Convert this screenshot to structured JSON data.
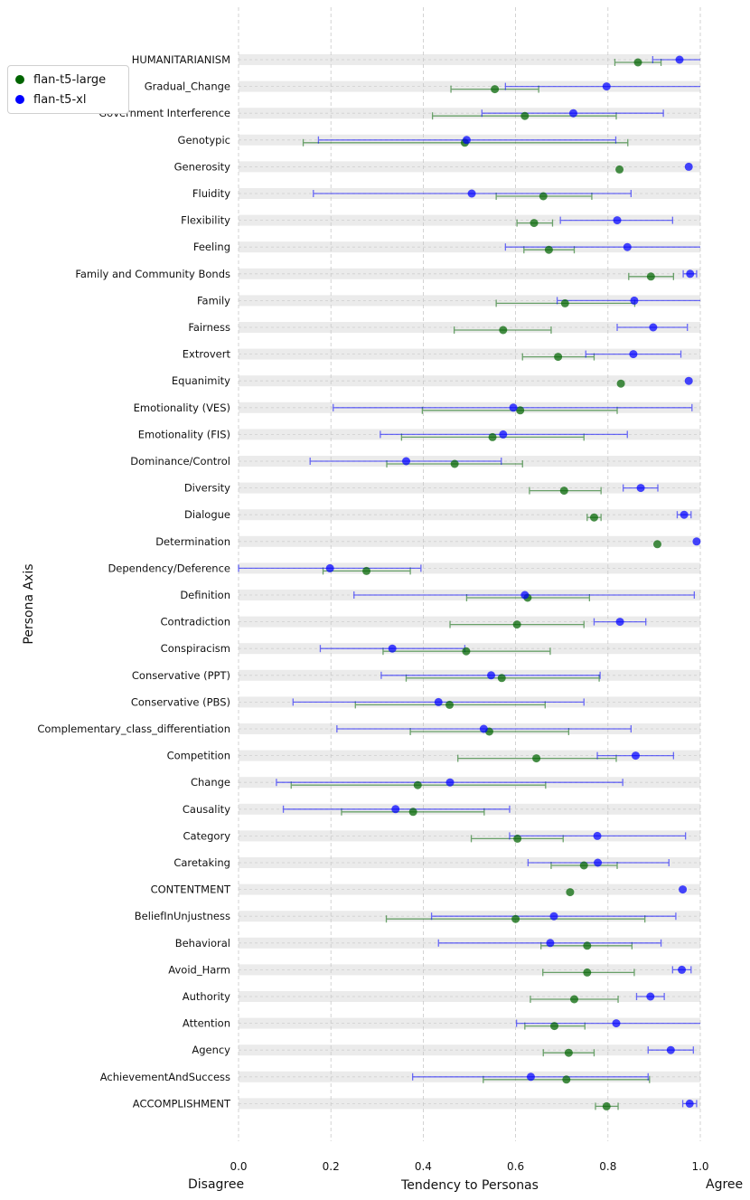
{
  "chart_data": {
    "type": "scatter",
    "orientation": "horizontal",
    "xlabel": "Tendency to Personas",
    "ylabel": "Persona Axis",
    "xlim": [
      0.0,
      1.0
    ],
    "xticks": [
      "0.0",
      "0.2",
      "0.4",
      "0.6",
      "0.8",
      "1.0"
    ],
    "xtick_values": [
      0.0,
      0.2,
      0.4,
      0.6,
      0.8,
      1.0
    ],
    "x_left_annotation": "Disagree",
    "x_right_annotation": "Agree",
    "legend_position": "top-left",
    "categories": [
      "HUMANITARIANISM",
      "Gradual_Change",
      "Government Interference",
      "Genotypic",
      "Generosity",
      "Fluidity",
      "Flexibility",
      "Feeling",
      "Family and Community Bonds",
      "Family",
      "Fairness",
      "Extrovert",
      "Equanimity",
      "Emotionality (VES)",
      "Emotionality (FIS)",
      "Dominance/Control",
      "Diversity",
      "Dialogue",
      "Determination",
      "Dependency/Deference",
      "Definition",
      "Contradiction",
      "Conspiracism",
      "Conservative (PPT)",
      "Conservative (PBS)",
      "Complementary_class_differentiation",
      "Competition",
      "Change",
      "Causality",
      "Category",
      "Caretaking",
      "CONTENTMENT",
      "BeliefInUnjustness",
      "Behavioral",
      "Avoid_Harm",
      "Authority",
      "Attention",
      "Agency",
      "AchievementAndSuccess",
      "ACCOMPLISHMENT"
    ],
    "series": [
      {
        "name": "flan-t5-large",
        "color": "#006400",
        "means": [
          0.865,
          0.555,
          0.62,
          0.49,
          0.825,
          0.66,
          0.64,
          0.672,
          0.893,
          0.707,
          0.573,
          0.692,
          0.828,
          0.61,
          0.55,
          0.468,
          0.705,
          0.77,
          0.907,
          0.277,
          0.626,
          0.603,
          0.493,
          0.57,
          0.457,
          0.543,
          0.645,
          0.388,
          0.378,
          0.604,
          0.748,
          0.718,
          0.6,
          0.755,
          0.755,
          0.727,
          0.684,
          0.715,
          0.71,
          0.797
        ],
        "lower": [
          0.815,
          0.46,
          0.42,
          0.14,
          null,
          0.558,
          0.603,
          0.618,
          0.845,
          0.558,
          0.467,
          0.615,
          null,
          0.398,
          0.353,
          0.321,
          0.63,
          0.755,
          null,
          0.183,
          0.494,
          0.458,
          0.313,
          0.363,
          0.253,
          0.372,
          0.475,
          0.114,
          0.223,
          0.504,
          0.677,
          null,
          0.32,
          0.655,
          0.659,
          0.632,
          0.62,
          0.66,
          0.53,
          0.773
        ],
        "upper": [
          0.915,
          0.65,
          0.818,
          0.843,
          null,
          0.765,
          0.68,
          0.727,
          0.942,
          0.858,
          0.677,
          0.77,
          null,
          0.82,
          0.748,
          0.615,
          0.785,
          0.785,
          null,
          0.372,
          0.76,
          0.748,
          0.675,
          0.781,
          0.664,
          0.715,
          0.818,
          0.665,
          0.532,
          0.703,
          0.82,
          null,
          0.88,
          0.852,
          0.857,
          0.822,
          0.75,
          0.77,
          0.89,
          0.822
        ]
      },
      {
        "name": "flan-t5-xl",
        "color": "#0000ff",
        "means": [
          0.955,
          0.797,
          0.725,
          0.494,
          0.975,
          0.505,
          0.82,
          0.842,
          0.978,
          0.857,
          0.898,
          0.855,
          0.975,
          0.595,
          0.573,
          0.363,
          0.871,
          0.965,
          0.992,
          0.198,
          0.62,
          0.826,
          0.333,
          0.547,
          0.433,
          0.531,
          0.86,
          0.458,
          0.34,
          0.777,
          0.778,
          0.962,
          0.683,
          0.675,
          0.96,
          0.892,
          0.818,
          0.936,
          0.633,
          0.977
        ],
        "lower": [
          0.897,
          0.578,
          0.527,
          0.173,
          null,
          0.162,
          0.697,
          0.578,
          0.963,
          0.69,
          0.82,
          0.752,
          null,
          0.205,
          0.307,
          0.155,
          0.833,
          0.95,
          null,
          0.0,
          0.25,
          0.77,
          0.177,
          0.309,
          0.118,
          0.213,
          0.777,
          0.082,
          0.097,
          0.587,
          0.627,
          null,
          0.418,
          0.433,
          0.94,
          0.862,
          0.602,
          0.887,
          0.377,
          0.962
        ],
        "upper": [
          1.0,
          1.0,
          0.92,
          0.817,
          null,
          0.85,
          0.94,
          1.0,
          0.992,
          1.0,
          0.972,
          0.958,
          null,
          0.982,
          0.842,
          0.569,
          0.908,
          0.98,
          null,
          0.395,
          0.987,
          0.882,
          0.49,
          0.783,
          0.748,
          0.85,
          0.942,
          0.832,
          0.587,
          0.968,
          0.932,
          null,
          0.947,
          0.915,
          0.98,
          0.922,
          1.0,
          0.985,
          0.887,
          0.992
        ]
      }
    ]
  }
}
